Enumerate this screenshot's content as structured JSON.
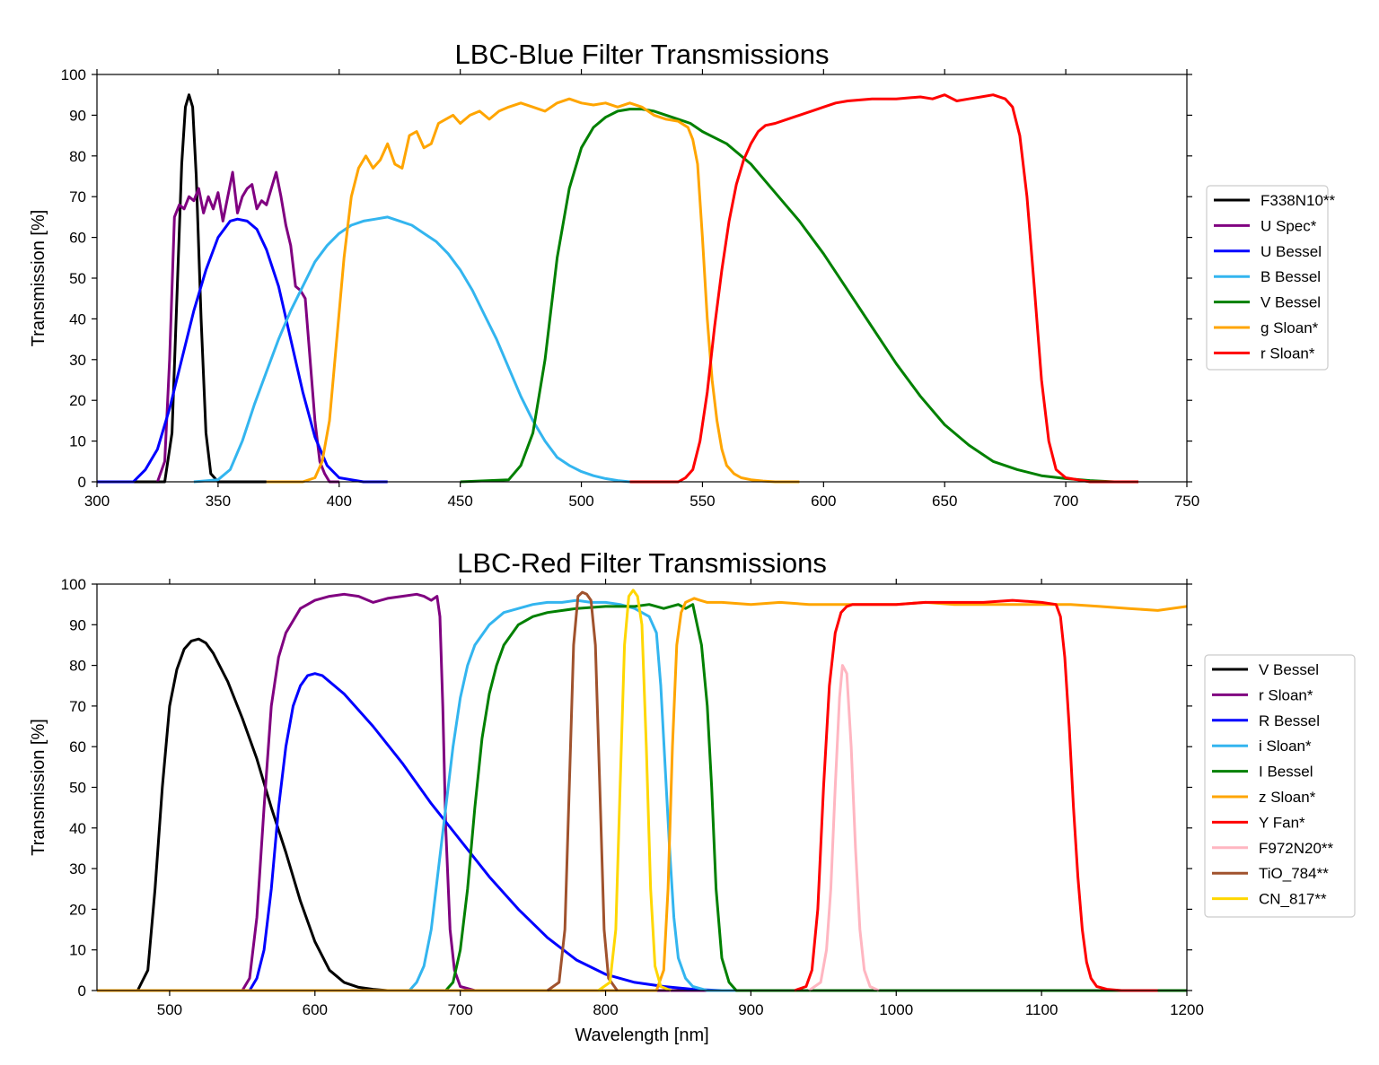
{
  "chart_data": [
    {
      "type": "line",
      "title": "LBC-Blue Filter Transmissions",
      "xlabel": "",
      "ylabel": "Transmission [%]",
      "xlim": [
        300,
        750
      ],
      "ylim": [
        0,
        100
      ],
      "xticks": [
        300,
        350,
        400,
        450,
        500,
        550,
        600,
        650,
        700,
        750
      ],
      "yticks": [
        0,
        10,
        20,
        30,
        40,
        50,
        60,
        70,
        80,
        90,
        100
      ],
      "grid": false,
      "legend_position": "right",
      "series": [
        {
          "name": "F338N10**",
          "color": "#000000",
          "x": [
            300,
            328,
            331,
            333,
            335,
            336.5,
            338,
            339.5,
            341,
            343,
            345,
            347,
            350,
            370
          ],
          "y": [
            0,
            0,
            12,
            45,
            78,
            92,
            95,
            92,
            75,
            40,
            12,
            2,
            0,
            0
          ]
        },
        {
          "name": "U Spec*",
          "color": "#800080",
          "x": [
            325,
            328,
            330,
            332,
            334,
            336,
            338,
            340,
            342,
            344,
            346,
            348,
            350,
            352,
            354,
            356,
            358,
            360,
            362,
            364,
            366,
            368,
            370,
            372,
            374,
            376,
            378,
            380,
            382,
            384,
            386,
            388,
            390,
            392,
            394,
            396,
            400
          ],
          "y": [
            0,
            5,
            30,
            65,
            68,
            67,
            70,
            69,
            72,
            66,
            70,
            67,
            71,
            64,
            70,
            76,
            66,
            70,
            72,
            73,
            67,
            69,
            68,
            72,
            76,
            70,
            63,
            58,
            48,
            47,
            45,
            30,
            15,
            5,
            2,
            0,
            0
          ]
        },
        {
          "name": "U Bessel",
          "color": "#0000ff",
          "x": [
            300,
            315,
            320,
            325,
            330,
            335,
            340,
            345,
            350,
            355,
            358,
            362,
            366,
            370,
            375,
            380,
            385,
            390,
            395,
            400,
            410,
            420
          ],
          "y": [
            0,
            0,
            3,
            8,
            18,
            30,
            42,
            52,
            60,
            64,
            64.5,
            64,
            62,
            57,
            48,
            35,
            22,
            11,
            4,
            1,
            0,
            0
          ]
        },
        {
          "name": "B Bessel",
          "color": "#33b5ef",
          "x": [
            340,
            350,
            355,
            360,
            365,
            370,
            375,
            380,
            385,
            390,
            395,
            400,
            405,
            410,
            415,
            420,
            425,
            430,
            435,
            440,
            445,
            450,
            455,
            460,
            465,
            470,
            475,
            480,
            485,
            490,
            495,
            500,
            505,
            510,
            515,
            520
          ],
          "y": [
            0,
            0.5,
            3,
            10,
            19,
            27,
            35,
            42,
            48,
            54,
            58,
            61,
            63,
            64,
            64.5,
            65,
            64,
            63,
            61,
            59,
            56,
            52,
            47,
            41,
            35,
            28,
            21,
            15,
            10,
            6,
            4,
            2.5,
            1.5,
            0.8,
            0.3,
            0
          ]
        },
        {
          "name": "V Bessel",
          "color": "#008000",
          "x": [
            450,
            470,
            475,
            480,
            485,
            490,
            495,
            500,
            505,
            510,
            515,
            520,
            525,
            530,
            535,
            540,
            545,
            550,
            560,
            570,
            580,
            590,
            600,
            610,
            620,
            630,
            640,
            650,
            660,
            670,
            680,
            690,
            700,
            710,
            720
          ],
          "y": [
            0,
            0.5,
            4,
            12,
            30,
            55,
            72,
            82,
            87,
            89.5,
            91,
            91.5,
            91.5,
            91,
            90,
            89,
            88,
            86,
            83,
            78,
            71,
            64,
            56,
            47,
            38,
            29,
            21,
            14,
            9,
            5,
            3,
            1.5,
            0.8,
            0.3,
            0
          ]
        },
        {
          "name": "g Sloan*",
          "color": "#ffa500",
          "x": [
            370,
            385,
            390,
            393,
            396,
            399,
            402,
            405,
            408,
            411,
            414,
            417,
            420,
            423,
            426,
            429,
            432,
            435,
            438,
            441,
            444,
            447,
            450,
            454,
            458,
            462,
            466,
            470,
            475,
            480,
            485,
            490,
            495,
            500,
            505,
            510,
            515,
            520,
            525,
            530,
            535,
            540,
            544,
            546,
            548,
            550,
            552,
            554,
            556,
            558,
            560,
            563,
            566,
            570,
            575,
            580,
            590
          ],
          "y": [
            0,
            0,
            1,
            5,
            15,
            35,
            55,
            70,
            77,
            80,
            77,
            79,
            83,
            78,
            77,
            85,
            86,
            82,
            83,
            88,
            89,
            90,
            88,
            90,
            91,
            89,
            91,
            92,
            93,
            92,
            91,
            93,
            94,
            93,
            92.5,
            93,
            92,
            93,
            92,
            90,
            89,
            88.5,
            87,
            84,
            78,
            60,
            40,
            25,
            15,
            8,
            4,
            2,
            1,
            0.5,
            0.2,
            0,
            0
          ]
        },
        {
          "name": "r Sloan*",
          "color": "#ff0000",
          "x": [
            520,
            540,
            543,
            546,
            549,
            552,
            555,
            558,
            561,
            564,
            567,
            570,
            573,
            576,
            580,
            585,
            590,
            595,
            600,
            605,
            610,
            620,
            630,
            640,
            645,
            650,
            655,
            660,
            665,
            670,
            675,
            678,
            681,
            684,
            687,
            690,
            693,
            696,
            700,
            710,
            730
          ],
          "y": [
            0,
            0,
            1,
            3,
            10,
            22,
            38,
            52,
            64,
            73,
            79,
            83,
            86,
            87.5,
            88,
            89,
            90,
            91,
            92,
            93,
            93.5,
            94,
            94,
            94.5,
            94,
            95,
            93.5,
            94,
            94.5,
            95,
            94,
            92,
            85,
            70,
            48,
            25,
            10,
            3,
            1,
            0,
            0
          ]
        }
      ]
    },
    {
      "type": "line",
      "title": "LBC-Red Filter Transmissions",
      "xlabel": "Wavelength [nm]",
      "ylabel": "Transmission [%]",
      "xlim": [
        450,
        1200
      ],
      "ylim": [
        0,
        100
      ],
      "xticks": [
        500,
        600,
        700,
        800,
        900,
        1000,
        1100,
        1200
      ],
      "yticks": [
        0,
        10,
        20,
        30,
        40,
        50,
        60,
        70,
        80,
        90,
        100
      ],
      "grid": false,
      "legend_position": "right",
      "series": [
        {
          "name": "V Bessel",
          "color": "#000000",
          "x": [
            450,
            478,
            485,
            490,
            495,
            500,
            505,
            510,
            515,
            520,
            525,
            530,
            540,
            550,
            560,
            570,
            580,
            590,
            600,
            610,
            620,
            630,
            640,
            650,
            700
          ],
          "y": [
            0,
            0,
            5,
            25,
            50,
            70,
            79,
            84,
            86,
            86.5,
            85.5,
            83,
            76,
            67,
            57,
            45,
            34,
            22,
            12,
            5,
            2,
            0.8,
            0.3,
            0,
            0
          ]
        },
        {
          "name": "r Sloan*",
          "color": "#800080",
          "x": [
            450,
            550,
            555,
            560,
            565,
            570,
            575,
            580,
            590,
            600,
            610,
            620,
            630,
            640,
            650,
            660,
            670,
            675,
            680,
            684,
            686,
            688,
            690,
            693,
            696,
            700,
            710,
            1200
          ],
          "y": [
            0,
            0,
            3,
            18,
            45,
            70,
            82,
            88,
            94,
            96,
            97,
            97.5,
            97,
            95.5,
            96.5,
            97,
            97.5,
            97,
            96,
            97,
            92,
            70,
            40,
            15,
            5,
            1,
            0,
            0
          ]
        },
        {
          "name": "R Bessel",
          "color": "#0000ff",
          "x": [
            450,
            555,
            560,
            565,
            570,
            575,
            580,
            585,
            590,
            595,
            600,
            605,
            610,
            620,
            640,
            660,
            680,
            700,
            720,
            740,
            760,
            780,
            800,
            820,
            840,
            860,
            880,
            1200
          ],
          "y": [
            0,
            0,
            3,
            10,
            25,
            45,
            60,
            70,
            75,
            77.5,
            78,
            77.5,
            76,
            73,
            65,
            56,
            46,
            37,
            28,
            20,
            13,
            7.5,
            4,
            2,
            1,
            0.3,
            0,
            0
          ]
        },
        {
          "name": "i Sloan*",
          "color": "#33b5ef",
          "x": [
            450,
            665,
            670,
            675,
            680,
            685,
            690,
            695,
            700,
            705,
            710,
            720,
            730,
            740,
            750,
            760,
            770,
            780,
            790,
            800,
            810,
            820,
            830,
            835,
            838,
            841,
            844,
            847,
            850,
            855,
            860,
            870,
            1200
          ],
          "y": [
            0,
            0,
            2,
            6,
            15,
            30,
            45,
            60,
            72,
            80,
            85,
            90,
            93,
            94,
            95,
            95.5,
            95.5,
            96,
            95.5,
            95.5,
            95,
            94,
            92,
            88,
            75,
            55,
            35,
            18,
            8,
            3,
            1,
            0,
            0
          ]
        },
        {
          "name": "I Bessel",
          "color": "#008000",
          "x": [
            450,
            690,
            695,
            700,
            705,
            710,
            715,
            720,
            725,
            730,
            740,
            750,
            760,
            780,
            800,
            820,
            830,
            840,
            850,
            855,
            860,
            863,
            866,
            870,
            873,
            876,
            880,
            885,
            890,
            1200
          ],
          "y": [
            0,
            0,
            2,
            10,
            25,
            45,
            62,
            73,
            80,
            85,
            90,
            92,
            93,
            94,
            94.5,
            94.5,
            95,
            94,
            95,
            94,
            95,
            90,
            85,
            70,
            50,
            25,
            8,
            2,
            0,
            0
          ]
        },
        {
          "name": "z Sloan*",
          "color": "#ffa500",
          "x": [
            450,
            835,
            840,
            843,
            846,
            849,
            852,
            855,
            858,
            861,
            865,
            870,
            880,
            900,
            920,
            940,
            960,
            980,
            1000,
            1020,
            1040,
            1060,
            1080,
            1100,
            1120,
            1140,
            1160,
            1180,
            1200
          ],
          "y": [
            0,
            0,
            5,
            25,
            60,
            85,
            93,
            95.5,
            96,
            96.5,
            96,
            95.5,
            95.5,
            95,
            95.5,
            95,
            95,
            95,
            95,
            95.5,
            95,
            95,
            95,
            95,
            95,
            94.5,
            94,
            93.5,
            94.5
          ]
        },
        {
          "name": "Y Fan*",
          "color": "#ff0000",
          "x": [
            930,
            938,
            942,
            946,
            950,
            954,
            958,
            962,
            966,
            970,
            980,
            1000,
            1020,
            1040,
            1060,
            1080,
            1100,
            1110,
            1113,
            1116,
            1119,
            1122,
            1125,
            1128,
            1131,
            1134,
            1138,
            1145,
            1155,
            1180
          ],
          "y": [
            0,
            1,
            5,
            20,
            50,
            75,
            88,
            93,
            94.5,
            95,
            95,
            95,
            95.5,
            95.5,
            95.5,
            96,
            95.5,
            95,
            92,
            82,
            65,
            45,
            28,
            15,
            7,
            3,
            1,
            0.3,
            0,
            0
          ]
        },
        {
          "name": "F972N20**",
          "color": "#ffb6c1",
          "x": [
            940,
            948,
            952,
            955,
            958,
            961,
            963,
            966,
            969,
            972,
            975,
            978,
            982,
            988
          ],
          "y": [
            0,
            2,
            10,
            25,
            50,
            72,
            80,
            78,
            60,
            35,
            15,
            5,
            1,
            0
          ]
        },
        {
          "name": "TiO_784**",
          "color": "#a0522d",
          "x": [
            760,
            768,
            772,
            775,
            778,
            781,
            784,
            787,
            790,
            793,
            796,
            799,
            802,
            808
          ],
          "y": [
            0,
            2,
            15,
            50,
            85,
            97,
            98,
            97.5,
            96,
            85,
            50,
            15,
            3,
            0
          ]
        },
        {
          "name": "CN_817**",
          "color": "#ffd700",
          "x": [
            795,
            803,
            807,
            810,
            813,
            816,
            819,
            822,
            825,
            828,
            831,
            834,
            838,
            845
          ],
          "y": [
            0,
            2,
            15,
            50,
            85,
            97,
            98.5,
            97,
            90,
            60,
            25,
            6,
            1,
            0
          ]
        }
      ]
    }
  ]
}
